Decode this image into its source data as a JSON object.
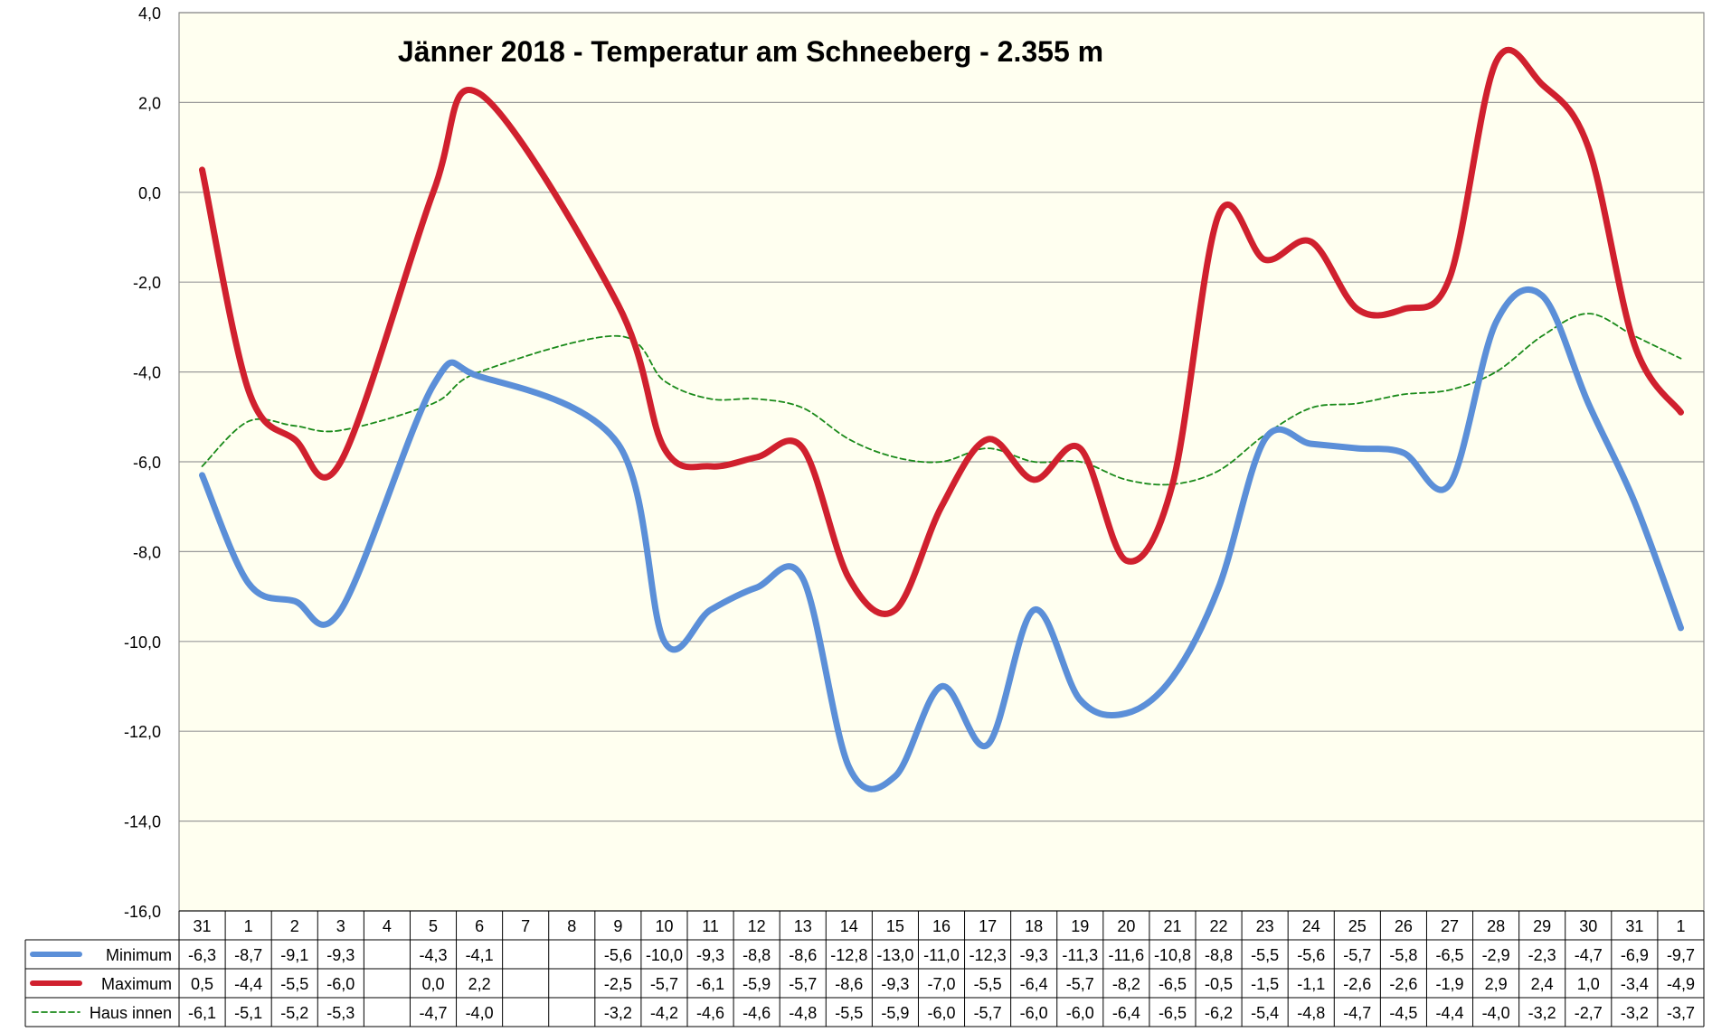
{
  "chart_data": {
    "type": "line",
    "title": "Jänner 2018 - Temperatur am Schneeberg - 2.355 m",
    "xlabel": "",
    "ylabel": "",
    "ylim": [
      -16,
      4
    ],
    "y_ticks": [
      "4,0",
      "2,0",
      "0,0",
      "-2,0",
      "-4,0",
      "-6,0",
      "-8,0",
      "-10,0",
      "-12,0",
      "-14,0",
      "-16,0"
    ],
    "grid": true,
    "legend": "data-table-left",
    "categories": [
      "31",
      "1",
      "2",
      "3",
      "4",
      "5",
      "6",
      "7",
      "8",
      "9",
      "10",
      "11",
      "12",
      "13",
      "14",
      "15",
      "16",
      "17",
      "18",
      "19",
      "20",
      "21",
      "22",
      "23",
      "24",
      "25",
      "26",
      "27",
      "28",
      "29",
      "30",
      "31",
      "1"
    ],
    "series": [
      {
        "name": "Minimum",
        "color": "#5b8fd8",
        "style": "solid-thick",
        "values": [
          -6.3,
          -8.7,
          -9.1,
          -9.3,
          null,
          -4.3,
          -4.1,
          null,
          null,
          -5.6,
          -10.0,
          -9.3,
          -8.8,
          -8.6,
          -12.8,
          -13.0,
          -11.0,
          -12.3,
          -9.3,
          -11.3,
          -11.6,
          -10.8,
          -8.8,
          -5.5,
          -5.6,
          -5.7,
          -5.8,
          -6.5,
          -2.9,
          -2.3,
          -4.7,
          -6.9,
          -9.7
        ],
        "labels": [
          "-6,3",
          "-8,7",
          "-9,1",
          "-9,3",
          "",
          "-4,3",
          "-4,1",
          "",
          "",
          "-5,6",
          "-10,0",
          "-9,3",
          "-8,8",
          "-8,6",
          "-12,8",
          "-13,0",
          "-11,0",
          "-12,3",
          "-9,3",
          "-11,3",
          "-11,6",
          "-10,8",
          "-8,8",
          "-5,5",
          "-5,6",
          "-5,7",
          "-5,8",
          "-6,5",
          "-2,9",
          "-2,3",
          "-4,7",
          "-6,9",
          "-9,7"
        ]
      },
      {
        "name": "Maximum",
        "color": "#d0202e",
        "style": "solid-thick",
        "values": [
          0.5,
          -4.4,
          -5.5,
          -6.0,
          null,
          0.0,
          2.2,
          null,
          null,
          -2.5,
          -5.7,
          -6.1,
          -5.9,
          -5.7,
          -8.6,
          -9.3,
          -7.0,
          -5.5,
          -6.4,
          -5.7,
          -8.2,
          -6.5,
          -0.5,
          -1.5,
          -1.1,
          -2.6,
          -2.6,
          -1.9,
          2.9,
          2.4,
          1.0,
          -3.4,
          -4.9
        ],
        "labels": [
          "0,5",
          "-4,4",
          "-5,5",
          "-6,0",
          "",
          "0,0",
          "2,2",
          "",
          "",
          "-2,5",
          "-5,7",
          "-6,1",
          "-5,9",
          "-5,7",
          "-8,6",
          "-9,3",
          "-7,0",
          "-5,5",
          "-6,4",
          "-5,7",
          "-8,2",
          "-6,5",
          "-0,5",
          "-1,5",
          "-1,1",
          "-2,6",
          "-2,6",
          "-1,9",
          "2,9",
          "2,4",
          "1,0",
          "-3,4",
          "-4,9"
        ]
      },
      {
        "name": "Haus innen",
        "color": "#1a8a1a",
        "style": "dashed-thin",
        "values": [
          -6.1,
          -5.1,
          -5.2,
          -5.3,
          null,
          -4.7,
          -4.0,
          null,
          null,
          -3.2,
          -4.2,
          -4.6,
          -4.6,
          -4.8,
          -5.5,
          -5.9,
          -6.0,
          -5.7,
          -6.0,
          -6.0,
          -6.4,
          -6.5,
          -6.2,
          -5.4,
          -4.8,
          -4.7,
          -4.5,
          -4.4,
          -4.0,
          -3.2,
          -2.7,
          -3.2,
          -3.7
        ],
        "labels": [
          "-6,1",
          "-5,1",
          "-5,2",
          "-5,3",
          "",
          "-4,7",
          "-4,0",
          "",
          "",
          "-3,2",
          "-4,2",
          "-4,6",
          "-4,6",
          "-4,8",
          "-5,5",
          "-5,9",
          "-6,0",
          "-5,7",
          "-6,0",
          "-6,0",
          "-6,4",
          "-6,5",
          "-6,2",
          "-5,4",
          "-4,8",
          "-4,7",
          "-4,5",
          "-4,4",
          "-4,0",
          "-3,2",
          "-2,7",
          "-3,2",
          "-3,7"
        ]
      }
    ]
  },
  "colors": {
    "plot_background": "#fffff0",
    "gridline": "#9a9a9a",
    "frame": "#8c8c8c"
  }
}
